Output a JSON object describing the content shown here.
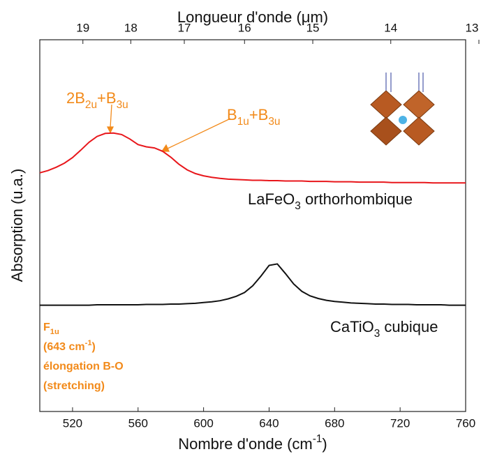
{
  "chart_data": {
    "type": "line",
    "x_label": [
      {
        "text": "Nombre d'onde (cm"
      },
      {
        "sup": "-1"
      },
      {
        "text": ")"
      }
    ],
    "x2_label": "Longueur d'onde (μm)",
    "y_label": "Absorption (u.a.)",
    "x": [
      500,
      505,
      510,
      515,
      520,
      525,
      530,
      535,
      540,
      545,
      550,
      555,
      560,
      565,
      570,
      575,
      580,
      585,
      590,
      595,
      600,
      605,
      610,
      615,
      620,
      625,
      630,
      635,
      640,
      645,
      650,
      655,
      660,
      665,
      670,
      675,
      680,
      685,
      690,
      695,
      700,
      705,
      710,
      715,
      720,
      725,
      730,
      735,
      740,
      745,
      750,
      755,
      760
    ],
    "series": [
      {
        "name": "LaFeO3 orthorhombique",
        "color": "#e8161b",
        "values": [
          0.642,
          0.648,
          0.657,
          0.668,
          0.683,
          0.703,
          0.724,
          0.74,
          0.748,
          0.749,
          0.745,
          0.733,
          0.718,
          0.712,
          0.709,
          0.7,
          0.684,
          0.665,
          0.65,
          0.64,
          0.634,
          0.63,
          0.627,
          0.625,
          0.624,
          0.623,
          0.622,
          0.622,
          0.621,
          0.621,
          0.62,
          0.62,
          0.62,
          0.619,
          0.619,
          0.619,
          0.618,
          0.618,
          0.618,
          0.617,
          0.617,
          0.617,
          0.617,
          0.616,
          0.616,
          0.616,
          0.616,
          0.616,
          0.615,
          0.615,
          0.615,
          0.615,
          0.615
        ]
      },
      {
        "name": "CaTiO3 cubique",
        "color": "#111111",
        "values": [
          0.286,
          0.286,
          0.286,
          0.286,
          0.286,
          0.286,
          0.286,
          0.287,
          0.287,
          0.287,
          0.287,
          0.287,
          0.287,
          0.288,
          0.288,
          0.288,
          0.289,
          0.289,
          0.29,
          0.291,
          0.293,
          0.295,
          0.298,
          0.303,
          0.31,
          0.32,
          0.338,
          0.364,
          0.393,
          0.397,
          0.371,
          0.343,
          0.323,
          0.311,
          0.304,
          0.299,
          0.296,
          0.294,
          0.292,
          0.291,
          0.29,
          0.289,
          0.289,
          0.288,
          0.288,
          0.288,
          0.287,
          0.287,
          0.287,
          0.287,
          0.286,
          0.286,
          0.286
        ]
      }
    ],
    "xlim": [
      500,
      760
    ],
    "xticks": [
      520,
      560,
      600,
      640,
      680,
      720,
      760
    ],
    "x2ticks": [
      19,
      18,
      17,
      16,
      15,
      14,
      13
    ],
    "ylim": [
      0,
      1
    ],
    "annotations": [
      [
        {
          "text": "2B"
        },
        {
          "sub": "2u"
        },
        {
          "text": "+B"
        },
        {
          "sub": "3u"
        }
      ],
      [
        {
          "text": "B"
        },
        {
          "sub": "1u"
        },
        {
          "text": "+B"
        },
        {
          "sub": "3u"
        }
      ],
      [
        {
          "text": "F"
        },
        {
          "sub": "1u"
        }
      ],
      [
        {
          "text": "(643 cm"
        },
        {
          "sup": "-1"
        },
        {
          "text": ")"
        }
      ],
      [
        {
          "text": "élongation B-O"
        }
      ],
      [
        {
          "text": "(stretching)"
        }
      ]
    ]
  }
}
